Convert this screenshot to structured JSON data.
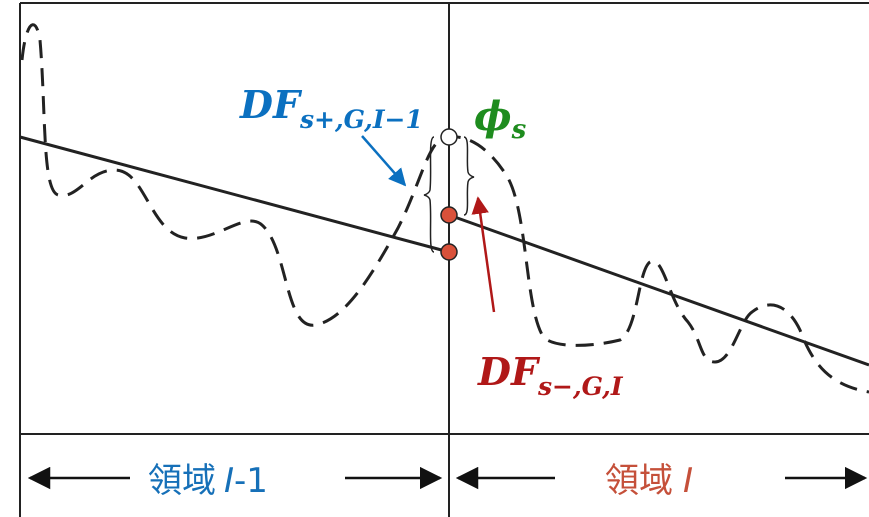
{
  "labels": {
    "df_plus": {
      "main": "DF",
      "sub": "s+,G,I−1"
    },
    "phi": {
      "main": "ϕ",
      "sub": "s"
    },
    "df_minus": {
      "main": "DF",
      "sub": "s−,G,I"
    }
  },
  "regions": {
    "left": {
      "text": "領域",
      "var": "I",
      "suffix": "-1"
    },
    "right": {
      "text": "領域",
      "var": "I"
    }
  },
  "colors": {
    "df_plus": "#0b70c0",
    "phi": "#1e8c1e",
    "df_minus": "#b01818",
    "region_left": "#1670b8",
    "region_right": "#c5503a",
    "point_fill": "#d9513a"
  }
}
